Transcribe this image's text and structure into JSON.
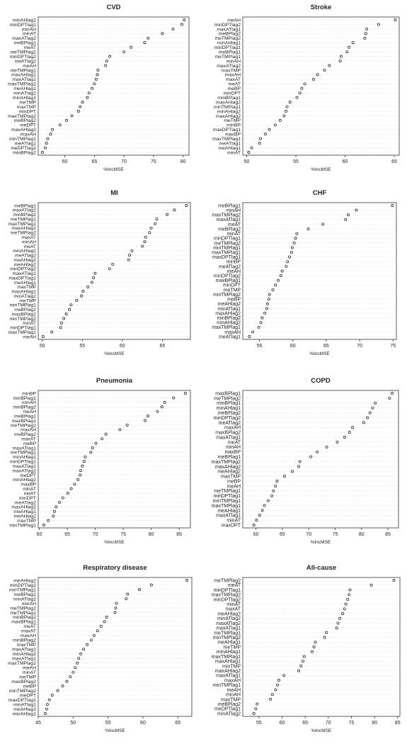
{
  "chart_data": [
    {
      "type": "scatter",
      "title": "CVD",
      "xlabel": "%IncMSE",
      "xlim": [
        55.5,
        81
      ],
      "xticks": [
        60,
        65,
        70,
        75,
        80
      ],
      "categories": [
        "minAHlag2",
        "minDPTlag1",
        "minAH",
        "minAT",
        "maxATlag2",
        "meBPlag1",
        "meAT",
        "meTMPlag2",
        "minDPTlag2",
        "meATlag2",
        "meAH",
        "meTMPlag1",
        "maxAHlag1",
        "maxATlag1",
        "maxTMPlag1",
        "meAHlag1",
        "minATlag2",
        "minAHlag1",
        "meTMP",
        "maxTMP",
        "minDPT",
        "maxTMPlag2",
        "meBPlag2",
        "meDPT",
        "maxAHlag2",
        "maxAH",
        "minTMPlag1",
        "meATlag1",
        "meDPTlag2",
        "minBPlag2"
      ],
      "values": [
        80.2,
        79.8,
        78.3,
        76.5,
        74.1,
        73.5,
        71.2,
        70.0,
        67.6,
        67.1,
        66.9,
        65.6,
        65.5,
        65.3,
        65.0,
        64.6,
        64.1,
        63.8,
        63.0,
        62.6,
        62.3,
        61.2,
        60.3,
        59.2,
        57.9,
        57.6,
        57.1,
        56.9,
        56.7,
        56.2
      ]
    },
    {
      "type": "scatter",
      "title": "Stroke",
      "xlabel": "%IncMSE",
      "xlim": [
        49.6,
        65.5
      ],
      "xticks": [
        50,
        55,
        60,
        65
      ],
      "categories": [
        "meAH",
        "minDPTlag2",
        "maxATlag1",
        "meBPlag2",
        "meTMPlag2",
        "minAHlag1",
        "minDPTlag1",
        "meBPlag1",
        "meTMPlag1",
        "minAH",
        "maxATlag2",
        "maxTMP",
        "maxAH",
        "maxAT",
        "meAT",
        "meBP",
        "minDPT",
        "minBPlag1",
        "maxAHlag2",
        "minTMPlag1",
        "minAHlag2",
        "maxAHlag2",
        "meTMP",
        "minBP",
        "maxDPTlag1",
        "maxBP",
        "maxTMPlag1",
        "meATlag1",
        "meAHlag1",
        "minAT"
      ],
      "values": [
        65.1,
        63.4,
        62.2,
        62.1,
        62.0,
        60.8,
        60.4,
        60.2,
        59.6,
        59.5,
        58.4,
        57.9,
        57.2,
        56.8,
        55.9,
        55.6,
        55.4,
        55.1,
        54.4,
        54.1,
        54.0,
        53.8,
        53.4,
        52.9,
        52.3,
        51.9,
        51.4,
        51.3,
        50.5,
        50.2
      ]
    },
    {
      "type": "scatter",
      "title": "MI",
      "xlabel": "%IncMSE",
      "xlim": [
        49.5,
        68.5
      ],
      "xticks": [
        50,
        55,
        60,
        65
      ],
      "categories": [
        "meBPlag1",
        "maxATlag2",
        "minBPlag2",
        "meTMPlag1",
        "maxTMPlag1",
        "maxAHlag2",
        "meTMPlag2",
        "maxAT",
        "minAH",
        "meAT",
        "minAHlag2",
        "meATlag2",
        "meAHlag2",
        "meAHlag2",
        "minDPTlag2",
        "maxATlag1",
        "maxDPTlag1",
        "meAHlag1",
        "maxTMP",
        "maxAHlag1",
        "minATlag2",
        "meTMP",
        "minTMPlag1",
        "meBPlag2",
        "maxBPlag2",
        "minTMPlag2",
        "minAT",
        "minDPTlag1",
        "maxTMPlag1",
        "meAH"
      ],
      "values": [
        68.0,
        66.5,
        65.6,
        64.3,
        64.1,
        63.6,
        63.4,
        62.9,
        62.8,
        62.5,
        61.2,
        60.9,
        60.8,
        58.8,
        58.4,
        56.6,
        56.4,
        56.2,
        55.7,
        55.1,
        54.9,
        54.3,
        53.6,
        53.4,
        53.0,
        52.7,
        52.4,
        52.3,
        51.2,
        50.1
      ]
    },
    {
      "type": "scatter",
      "title": "CHF",
      "xlabel": "%IncMSE",
      "xlim": [
        52.5,
        75.5
      ],
      "xticks": [
        55,
        60,
        65,
        70,
        75
      ],
      "categories": [
        "meBPlag1",
        "minAH",
        "maxTMPlag2",
        "maxATlag1",
        "meAT",
        "meBPlag2",
        "minAT",
        "minDPTlag1",
        "meTMPlag2",
        "minTMPlag1",
        "maxTMPlag1",
        "maxDPTlag1",
        "minBP",
        "meATlag2",
        "meAH",
        "minDPTlag2",
        "maxBPlag1",
        "minDPT",
        "meTMP",
        "minTMPlag2",
        "meBP",
        "meAHlag2",
        "minATlag1",
        "maxAHlag2",
        "minBPlag2",
        "minAHlag2",
        "maxTMPlag1",
        "maxAH",
        "meATlag1"
      ],
      "values": [
        74.9,
        69.5,
        68.3,
        67.9,
        64.5,
        62.3,
        60.6,
        60.4,
        60.2,
        59.9,
        59.8,
        59.5,
        59.2,
        59.0,
        58.4,
        58.2,
        57.8,
        57.4,
        57.0,
        56.5,
        56.4,
        56.2,
        56.1,
        55.8,
        55.4,
        55.2,
        54.9,
        54.0,
        53.5
      ]
    },
    {
      "type": "scatter",
      "title": "Pneumonia",
      "xlabel": "%IncMSE",
      "xlim": [
        59.8,
        87
      ],
      "xticks": [
        60,
        65,
        70,
        75,
        80,
        85
      ],
      "categories": [
        "minBP",
        "minBPlag1",
        "minAH",
        "minBPlag2",
        "meAH",
        "meBPlag1",
        "maxBPlag1",
        "meTMPlag2",
        "maxAH",
        "meBPlag2",
        "maxAT",
        "meBP",
        "maxATlag1",
        "meTMPlag1",
        "minAHlag1",
        "minDPTlag1",
        "maxATlag1",
        "maxATlag2",
        "meDPT",
        "minAHlag2",
        "maxBP",
        "minAT",
        "meAT",
        "minDPT",
        "meATlag2",
        "maxAHlag2",
        "meAHlag1",
        "meAHlag2",
        "maxTMP",
        "minTMPlag1"
      ],
      "values": [
        86.1,
        84.0,
        82.4,
        81.9,
        81.1,
        79.4,
        78.9,
        75.7,
        74.4,
        71.9,
        71.2,
        70.1,
        69.5,
        69.2,
        68.2,
        68.0,
        67.7,
        67.4,
        67.3,
        66.9,
        66.3,
        65.7,
        65.1,
        64.2,
        63.6,
        63.0,
        62.7,
        62.5,
        61.6,
        60.8
      ]
    },
    {
      "type": "scatter",
      "title": "COPD",
      "xlabel": "%IncMSE",
      "xlim": [
        57.5,
        87
      ],
      "xticks": [
        60,
        65,
        70,
        75,
        80,
        85
      ],
      "categories": [
        "maxBPlag1",
        "meTMPlag2",
        "minBPlag1",
        "minAHlag1",
        "meBPlag2",
        "minDPTlag2",
        "meATlag2",
        "maxAH",
        "maxBPlag2",
        "maxATlag1",
        "meAT",
        "minAH",
        "maxBP",
        "meBPlag1",
        "maxTMPlag2",
        "maxAHlag2",
        "meAHlag2",
        "maxTMP",
        "meBP",
        "meAH",
        "meTMPlag1",
        "minDPTlag1",
        "minTMPlag1",
        "maxTMPlag1",
        "meAHlag1",
        "maxATlag1",
        "minAT",
        "maxDPT"
      ],
      "values": [
        85.8,
        85.3,
        82.6,
        82.1,
        81.6,
        81.1,
        80.4,
        78.3,
        77.7,
        76.8,
        75.4,
        73.4,
        71.6,
        70.4,
        68.3,
        68.1,
        66.9,
        65.4,
        64.0,
        63.7,
        63.3,
        63.0,
        62.3,
        61.6,
        61.2,
        60.7,
        60.1,
        59.6
      ]
    },
    {
      "type": "scatter",
      "title": "Respiratory disease",
      "xlabel": "%IncMSE",
      "xlim": [
        45,
        67
      ],
      "xticks": [
        45,
        50,
        55,
        60,
        65
      ],
      "categories": [
        "meAHlag2",
        "minDPTlag2",
        "minTMPlag1",
        "meBPlag1",
        "minATlag2",
        "minAH",
        "meTMPlag2",
        "meTMPlag1",
        "minBPlag2",
        "maxBPlag1",
        "meAT",
        "maxAT",
        "maxAH",
        "minBPlag2",
        "maxTMP",
        "maxATlag1",
        "minAHlag2",
        "maxATlag1",
        "maxTMPlag2",
        "meAH",
        "minAT",
        "meTMP",
        "maxBPlag2",
        "meBP",
        "minTMPlag2",
        "meDPT",
        "maxDPTlag1",
        "minATlag1",
        "meAHlag1",
        "minAHlag1"
      ],
      "values": [
        66.3,
        61.2,
        59.5,
        57.8,
        57.6,
        56.2,
        56.1,
        56.0,
        54.8,
        54.5,
        54.0,
        53.5,
        53.0,
        52.6,
        52.0,
        51.5,
        51.1,
        50.8,
        50.6,
        50.3,
        50.0,
        49.6,
        49.1,
        48.5,
        47.8,
        47.0,
        46.6,
        46.3,
        46.2,
        46.0
      ]
    },
    {
      "type": "scatter",
      "title": "All-cause",
      "xlabel": "%IncMSE",
      "xlim": [
        51.5,
        85.5
      ],
      "xticks": [
        55,
        60,
        65,
        70,
        75,
        80,
        85
      ],
      "categories": [
        "meTMPlag2",
        "meAT",
        "minDPTlag1",
        "maxTMPlag2",
        "minDPTlag2",
        "minAT",
        "maxAT",
        "meAHlag2",
        "minATlag2",
        "maxATlag2",
        "maxATlag1",
        "meTMPlag1",
        "minTMPlag2",
        "meAHlag1",
        "meTMP",
        "minAHlag1",
        "maxTMPlag1",
        "maxAHlag1",
        "minTMP",
        "maxAHlag2",
        "maxATlag1",
        "maxAH",
        "minTMPlag1",
        "meAH",
        "minAH",
        "maxTMP",
        "meBPlag2",
        "meDPTlag1",
        "minATlag2"
      ],
      "values": [
        84.2,
        79.3,
        74.7,
        74.5,
        74.2,
        73.8,
        73.5,
        73.1,
        72.5,
        72.1,
        71.8,
        69.6,
        69.2,
        67.2,
        66.9,
        66.5,
        64.8,
        64.5,
        64.1,
        63.6,
        60.4,
        59.3,
        59.0,
        58.6,
        57.9,
        57.5,
        54.6,
        54.3,
        53.9
      ]
    }
  ]
}
